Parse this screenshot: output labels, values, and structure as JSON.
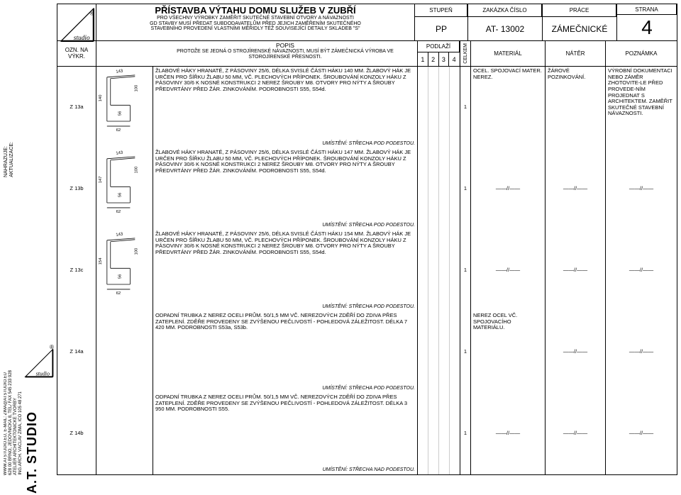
{
  "header": {
    "title": "PŘÍSTAVBA VÝTAHU DOMU SLUŽEB V ZUBŘÍ",
    "sub1": "PRO VŠECHNY VÝROBKY ZAMĚŘIT SKUTEČNÉ STAVEBNÍ OTVORY A NÁVAZNOSTI",
    "sub2": "GD STAVBY MUSÍ PŘEDAT SUBDODAVATELŮM PŘED JEJICH ZAMĚŘENÍM SKUTEČNÉHO",
    "sub3": "STAVEBNÍHO PROVEDENÍ VLASTNÍMI MĚŘIDLY TÉŽ SOUVISEJÍCÍ DETAILY SKLADEB \"S\"",
    "stupen_lbl": "STUPEŇ",
    "stupen": "PP",
    "zakazka_lbl": "ZAKÁZKA ČÍSLO",
    "zakazka": "AT- 13002",
    "prace_lbl": "PRÁCE",
    "prace": "ZÁMEČNICKÉ",
    "strana_lbl": "STRANA",
    "strana": "4"
  },
  "cols": {
    "ozn": "OZN. NA VÝKR.",
    "popis": "POPIS",
    "popis_sub": "PROTOŽE SE JEDNÁ O STROJÍRENSKÉ NÁVAZNOSTI, MUSÍ BÝT ZÁMEČNICKÁ VÝROBA VE STOROJÍRENSKÉ PŘESNOSTI.",
    "podlazi": "PODLAŽÍ",
    "p1": "1",
    "p2": "2",
    "p3": "3",
    "p4": "4",
    "celkem": "CELKEM",
    "material": "MATERIÁL",
    "nater": "NÁTĚR",
    "poznamka": "POZNÁMKA"
  },
  "rows": [
    {
      "ozn": "Z 13a",
      "dims": {
        "w": "143",
        "h": "140",
        "d1": "100",
        "d2": "62",
        "d3": "56"
      },
      "desc": "ŽLABOVÉ HÁKY HRANATÉ, Z PÁSOVINY 25/6, DÉLKA SVISLÉ ČÁSTI HÁKU 140 MM. ŽLABOVÝ HÁK JE URČEN PRO ŠÍŘKU ŽLABU 50 MM, VČ. PLECHOVÝCH PŘÍPONEK. ŠROUBOVÁNÍ KONZOLY HÁKU Z PÁSOVINY 30/6 K NOSNÉ KONSTRUKCI 2 NEREZ ŠROUBY M8. OTVORY PRO NÝTY A ŠROUBY PŘEDVRTÁNY PŘED ŽÁR. ZINKOVÁNÍM. PODROBNOSTI S55, S54d.",
      "umist": "UMÍSTĚNÍ: STŘECHA POD PODESTOU.",
      "celkem": "1",
      "mat": "OCEL. SPOJOVACÍ MATER. NEREZ.",
      "nater": "ŽÁROVÉ POZINKOVÁNÍ.",
      "pozn": "VÝROBNÍ DOKUMENTACI NEBO ZÁMĚR ZHOTOVITE-LE PŘED PROVEDE-NÍM PROJEDNAT S ARCHITEKTEM. ZAMĚŘIT SKUTEČNÉ STAVEBNÍ NÁVAZNOSTI."
    },
    {
      "ozn": "Z 13b",
      "dims": {
        "w": "143",
        "h": "147",
        "d1": "100",
        "d2": "62",
        "d3": "56"
      },
      "desc": "ŽLABOVÉ HÁKY HRANATÉ, Z PÁSOVINY 25/6, DÉLKA SVISLÉ ČÁSTI HÁKU 147 MM. ŽLABOVÝ HÁK JE URČEN PRO ŠÍŘKU ŽLABU 50 MM, VČ. PLECHOVÝCH PŘÍPONEK. ŠROUBOVÁNÍ KONZOLY HÁKU Z PÁSOVINY 30/6 K NOSNÉ KONSTRUKCI 2 NEREZ ŠROUBY M8. OTVORY PRO NÝTY A ŠROUBY PŘEDVRTÁNY PŘED ŽÁR. ZINKOVÁNÍM. PODROBNOSTI S55, S54d.",
      "umist": "UMÍSTĚNÍ: STŘECHA POD PODESTOU.",
      "celkem": "1",
      "mat": "——//——",
      "nater": "——//——",
      "pozn": "——//——"
    },
    {
      "ozn": "Z 13c",
      "dims": {
        "w": "143",
        "h": "154",
        "d1": "100",
        "d2": "62",
        "d3": "56"
      },
      "desc": "ŽLABOVÉ HÁKY HRANATÉ, Z PÁSOVINY 25/6, DÉLKA SVISLÉ ČÁSTI HÁKU 154 MM. ŽLABOVÝ HÁK JE URČEN PRO ŠÍŘKU ŽLABU 50 MM, VČ. PLECHOVÝCH PŘÍPONEK. ŠROUBOVÁNÍ KONZOLY HÁKU Z PÁSOVINY 30/6 K NOSNÉ KONSTRUKCI 2 NEREZ ŠROUBY M8. OTVORY PRO NÝTY A ŠROUBY PŘEDVRTÁNY PŘED ŽÁR. ZINKOVÁNÍM. PODROBNOSTI S55, S54d.",
      "umist": "UMÍSTĚNÍ: STŘECHA POD PODESTOU.",
      "celkem": "1",
      "mat": "——//——",
      "nater": "——//——",
      "pozn": "——//——"
    },
    {
      "ozn": "Z 14a",
      "desc": "ODPADNÍ TRUBKA Z NEREZ OCELI PRŮM. 50/1,5 MM VČ. NEREZOVÝCH ZDĚŘÍ DO ZDIVA PŘES ZATEPLENÍ. ZDĚŘE PROVEDENY SE ZVÝŠENOU PEČLIVOSTÍ - POHLEDOVÁ ZÁLEŽITOST. DÉLKA 7 420 MM. PODROBNOSTI S53a, S53b.",
      "umist": "UMÍSTĚNÍ: STŘECHA POD PODESTOU.",
      "celkem": "1",
      "mat": "NEREZ OCEL VČ. SPOJOVACÍHO MATERIÁLU.",
      "nater": "——//——",
      "pozn": "——//——"
    },
    {
      "ozn": "Z 14b",
      "desc": "ODPADNÍ TRUBKA Z NEREZ OCELI PRŮM. 50/1,5 MM VČ. NEREZOVÝCH ZDĚŘÍ DO ZDIVA PŘES ZATEPLENÍ. ZDĚŘE PROVEDENY SE ZVÝŠENOU PEČLIVOSTÍ - POHLEDOVÁ ZÁLEŽITOST. DÉLKA 3 950 MM. PODROBNOSTI S55.",
      "umist": "UMÍSTĚNÍ: STŘECHA NAD PODESTOU.",
      "celkem": "1",
      "mat": "——//——",
      "nater": "——//——",
      "pozn": "——//——"
    }
  ],
  "side": {
    "akt": "AKTUALIZACE:",
    "nahr": "NAHRAZUJE:",
    "studio": "A.T. STUDIO",
    "l1": "ING.ARCH. VÁCLAV ZIMA, IČO 105 48 271",
    "l2": "ATELIÉR ARCHITEKTONICKÉ TVORBY",
    "l3": "628 00 BRNO, JEDOVNICKÁ 8, TEL/ FAX 545 233 928",
    "l4": "WWW.ATSTUDIO.EU, E-MAIL: ZIMA@ATSTUDIO.EU",
    "r": "®"
  }
}
